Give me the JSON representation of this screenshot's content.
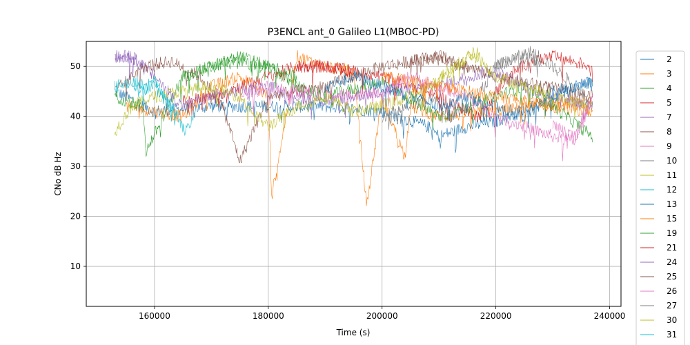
{
  "chart_data": {
    "type": "line",
    "title": "P3ENCL ant_0 Galileo L1(MBOC-PD)",
    "xlabel": "Time (s)",
    "ylabel": "CNo dB Hz",
    "xlim": [
      148000,
      242000
    ],
    "ylim": [
      2,
      55
    ],
    "grid": true,
    "legend_placement": "right-outside",
    "xticks": [
      160000,
      180000,
      200000,
      220000,
      240000
    ],
    "yticks": [
      10,
      20,
      30,
      40,
      50
    ],
    "x_start": 153000,
    "x_end": 237500,
    "series": [
      {
        "name": "2",
        "color": "#1f77b4",
        "x": [
          153000,
          160000,
          170000,
          180000,
          190000,
          200000,
          208000,
          210000,
          215000,
          220000,
          226000,
          230000,
          237000
        ],
        "values": [
          45,
          41,
          42,
          42,
          42,
          41,
          38,
          36,
          38,
          39,
          42,
          45,
          47
        ]
      },
      {
        "name": "3",
        "color": "#ff7f0e",
        "x": [
          155000,
          160000,
          165000,
          170000,
          175000,
          180000,
          180600,
          185000,
          190000,
          195000,
          197300,
          200000,
          204000,
          205000,
          210000,
          220000,
          226000,
          237000
        ],
        "values": [
          42,
          41,
          40,
          46,
          48,
          44,
          24,
          52,
          50,
          49,
          22,
          44,
          32,
          42,
          40,
          41,
          42,
          43
        ]
      },
      {
        "name": "4",
        "color": "#2ca02c",
        "x": [
          153000,
          158000,
          158500,
          165000,
          170000,
          175000,
          180000,
          185000,
          190000,
          200000,
          210000,
          215000,
          220000,
          225000,
          230000,
          237000
        ],
        "values": [
          44,
          42,
          33,
          48,
          50,
          52,
          50,
          46,
          44,
          47,
          40,
          42,
          44,
          46,
          42,
          36
        ]
      },
      {
        "name": "5",
        "color": "#d62728",
        "x": [
          165000,
          170000,
          175000,
          180000,
          185000,
          190000,
          195000,
          200000,
          205000,
          210000,
          217000,
          222000,
          226000,
          230000,
          237000
        ],
        "values": [
          43,
          44,
          46,
          48,
          50,
          50,
          49,
          48,
          46,
          44,
          40,
          48,
          51,
          52,
          50
        ]
      },
      {
        "name": "7",
        "color": "#9467bd",
        "x": [
          153000,
          156000,
          160000,
          165000,
          170000,
          175000,
          180000,
          185000,
          190000,
          200000,
          210000,
          215000,
          220000,
          225000,
          230000,
          237000
        ],
        "values": [
          52,
          52,
          48,
          42,
          44,
          45,
          46,
          44,
          43,
          45,
          46,
          48,
          49,
          46,
          44,
          42
        ]
      },
      {
        "name": "8",
        "color": "#8c564b",
        "x": [
          153000,
          158000,
          163000,
          168000,
          172000,
          175000,
          180000,
          190000,
          195000,
          200000,
          205000,
          210000,
          215000,
          220000,
          237000
        ],
        "values": [
          45,
          50,
          51,
          48,
          42,
          31,
          44,
          46,
          48,
          50,
          51,
          52,
          50,
          48,
          44
        ]
      },
      {
        "name": "9",
        "color": "#e377c2",
        "x": [
          175000,
          180000,
          185000,
          190000,
          200000,
          205000,
          210000,
          215000,
          220000,
          225000,
          230000,
          234000,
          237000
        ],
        "values": [
          44,
          46,
          45,
          44,
          45,
          48,
          46,
          44,
          40,
          38,
          36,
          35,
          44
        ]
      },
      {
        "name": "10",
        "color": "#7f7f7f",
        "x": [
          200000,
          205000,
          210000,
          212000,
          215000,
          218000,
          220000,
          224000,
          226500,
          230000,
          234000,
          237000
        ],
        "values": [
          40,
          42,
          44,
          40,
          42,
          46,
          50,
          52,
          53,
          50,
          46,
          42
        ]
      },
      {
        "name": "11",
        "color": "#bcbd22",
        "x": [
          153000,
          156000,
          160000,
          165000,
          170000,
          175000,
          178000,
          180000,
          185000,
          190000,
          195000,
          200000,
          205000,
          210000,
          216000,
          220000,
          225000,
          230000,
          237000
        ],
        "values": [
          37,
          42,
          44,
          45,
          46,
          44,
          40,
          38,
          42,
          44,
          41,
          42,
          44,
          47,
          53,
          48,
          46,
          44,
          42
        ]
      },
      {
        "name": "12",
        "color": "#17becf",
        "x": [
          153000,
          156000,
          158000,
          160000,
          163000,
          165500,
          167000
        ],
        "values": [
          46,
          47,
          45,
          47,
          42,
          37,
          40
        ]
      },
      {
        "name": "13",
        "color": "#1f77b4",
        "x": [
          190000,
          195000,
          200000,
          205000,
          210000,
          215000,
          220000,
          225000,
          230000,
          237000
        ],
        "values": [
          46,
          48,
          46,
          44,
          42,
          44,
          42,
          40,
          44,
          47
        ]
      },
      {
        "name": "15",
        "color": "#ff7f0e",
        "x": [
          200000,
          205000,
          210000,
          215000,
          220000,
          225000,
          230000,
          237000
        ],
        "values": [
          48,
          47,
          46,
          45,
          44,
          43,
          42,
          41
        ]
      },
      {
        "name": "19",
        "color": "#2ca02c",
        "x": [
          165000,
          170000,
          175000,
          180000,
          185000
        ],
        "values": [
          48,
          50,
          51,
          50,
          48
        ]
      },
      {
        "name": "21",
        "color": "#d62728",
        "x": [
          185000,
          190000,
          195000
        ],
        "values": [
          50,
          50,
          49
        ]
      },
      {
        "name": "24",
        "color": "#9467bd",
        "x": [
          153000,
          155000,
          158000
        ],
        "values": [
          52,
          52,
          51
        ]
      },
      {
        "name": "25",
        "color": "#8c564b",
        "x": [
          205000,
          210000,
          215000
        ],
        "values": [
          51,
          52,
          50
        ]
      },
      {
        "name": "26",
        "color": "#e377c2",
        "x": [
          230000,
          234000,
          237000
        ],
        "values": [
          38,
          36,
          44
        ]
      },
      {
        "name": "27",
        "color": "#7f7f7f",
        "x": [
          220000,
          224000,
          228000
        ],
        "values": [
          50,
          52,
          51
        ]
      },
      {
        "name": "30",
        "color": "#bcbd22",
        "x": [
          210000,
          214000,
          217000
        ],
        "values": [
          48,
          51,
          53
        ]
      },
      {
        "name": "31",
        "color": "#17becf",
        "x": [
          156000,
          160000,
          164000
        ],
        "values": [
          47,
          46,
          40
        ]
      }
    ]
  }
}
